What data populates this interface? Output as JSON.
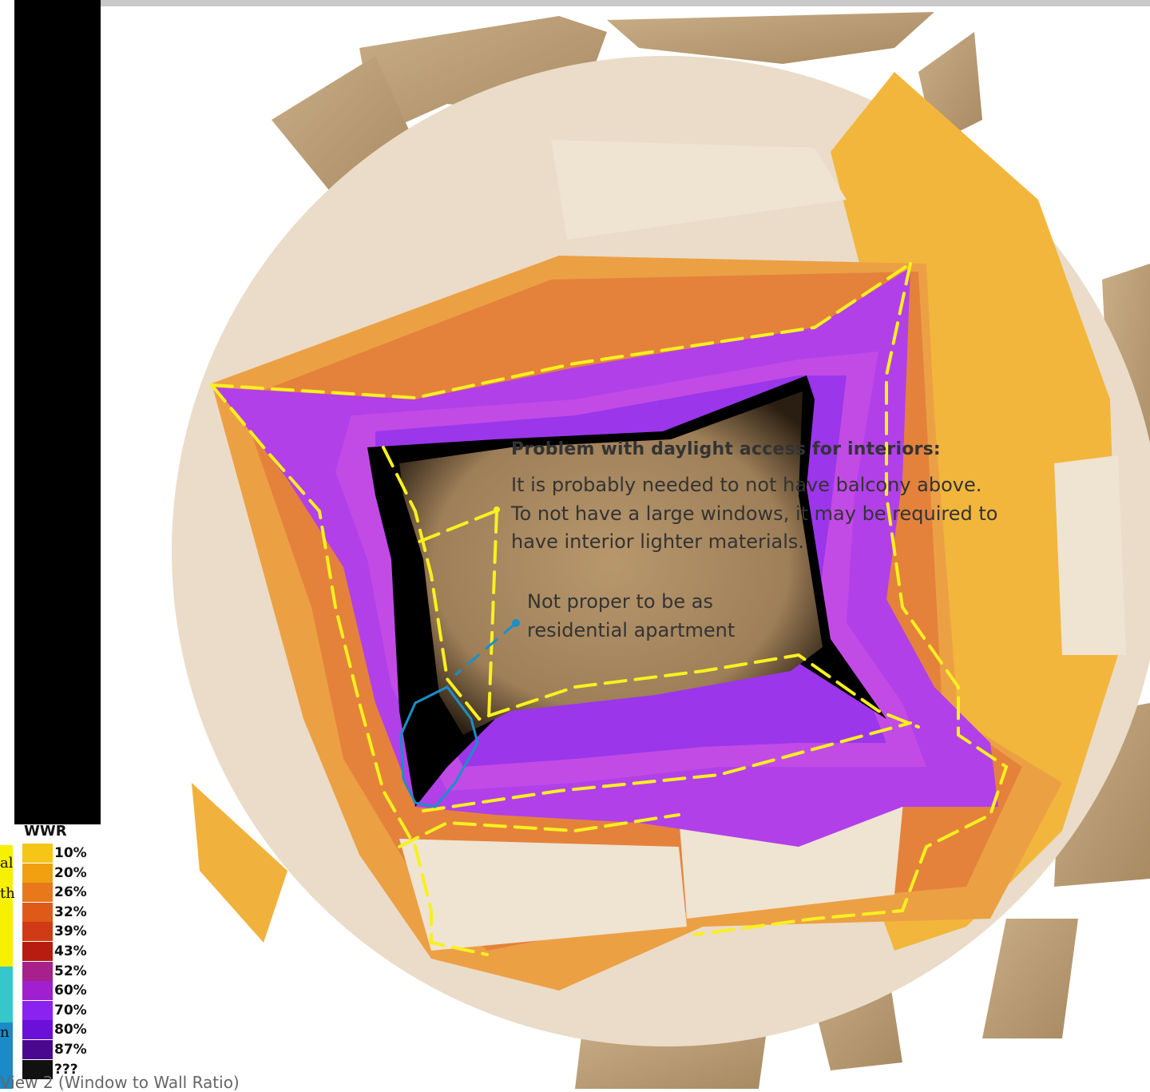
{
  "annotations": {
    "daylight_title": "Problem with daylight access for interiors:",
    "daylight_lines": [
      "It is probably needed to not have balcony above.",
      "To not have a large windows, it may be required to",
      "have interior lighter materials."
    ],
    "residential_lines": [
      "Not proper to be as",
      "residential apartment"
    ]
  },
  "legend": {
    "title": "WWR",
    "items": [
      {
        "label": "10%",
        "color": "#f5c518"
      },
      {
        "label": "20%",
        "color": "#f0a010"
      },
      {
        "label": "26%",
        "color": "#e8781a"
      },
      {
        "label": "32%",
        "color": "#df5a18"
      },
      {
        "label": "39%",
        "color": "#d03a14"
      },
      {
        "label": "43%",
        "color": "#b81c10"
      },
      {
        "label": "52%",
        "color": "#a8208c"
      },
      {
        "label": "60%",
        "color": "#a020d0"
      },
      {
        "label": "70%",
        "color": "#8a22f0"
      },
      {
        "label": "80%",
        "color": "#6a10d8"
      },
      {
        "label": "87%",
        "color": "#4a0890"
      },
      {
        "label": "???",
        "color": "#111111"
      }
    ]
  },
  "cut_text": {
    "left_fragments": [
      "al",
      "th",
      "n"
    ],
    "caption": "View 2 (Window to Wall Ratio)"
  },
  "colors": {
    "facade_beige": "#b89a72",
    "facade_light": "#eadcc8",
    "interior_brown": "#a88a62",
    "outline_yellow": "#f8f020",
    "outline_blue": "#1890c8"
  }
}
